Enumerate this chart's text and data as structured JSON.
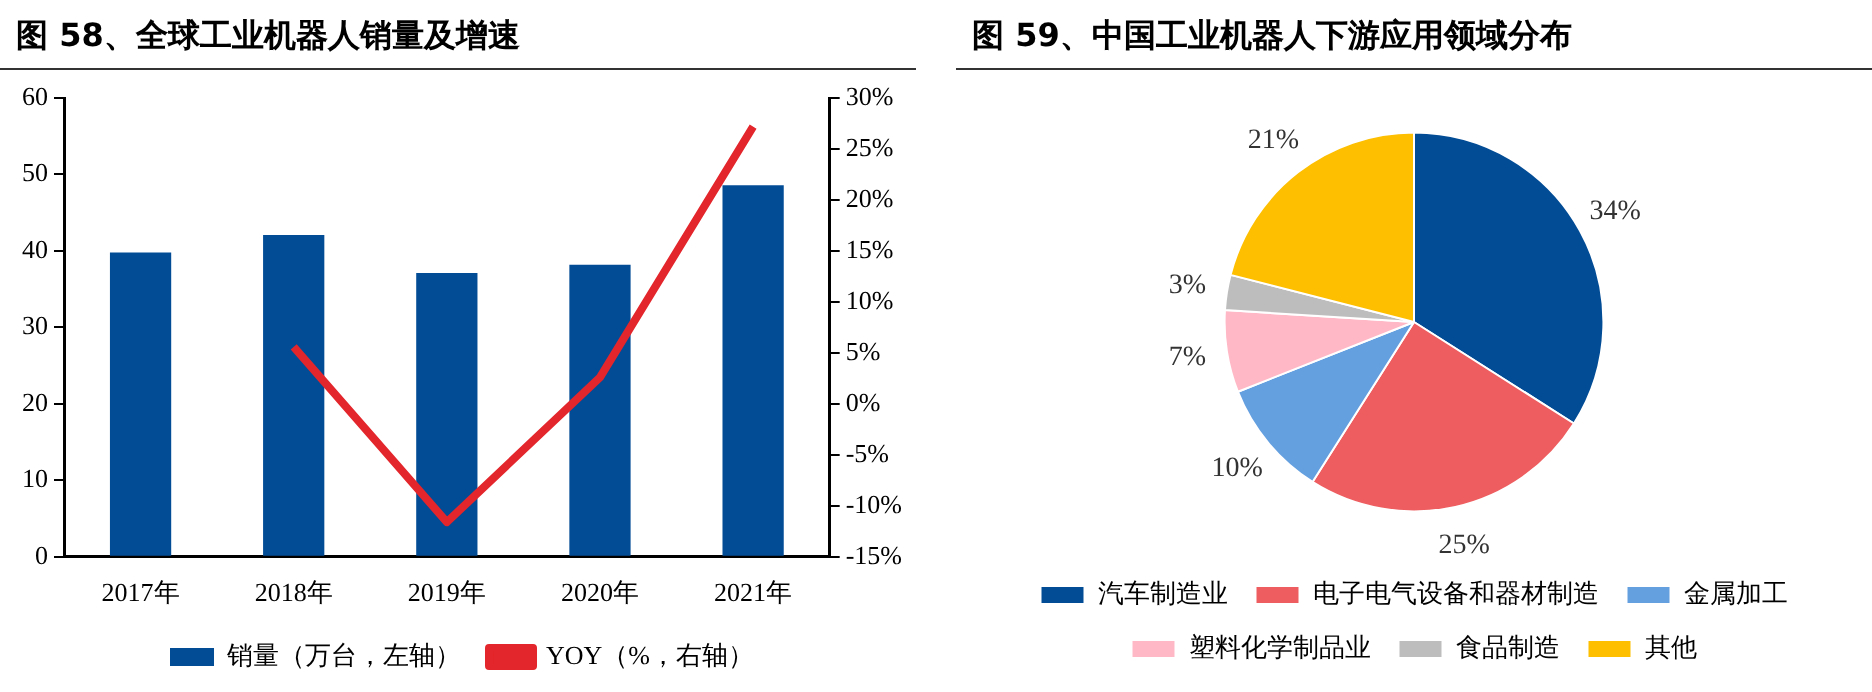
{
  "chart_data": [
    {
      "type": "bar",
      "title": "图 58、全球工业机器人销量及增速",
      "categories": [
        "2017年",
        "2018年",
        "2019年",
        "2020年",
        "2021年"
      ],
      "series": [
        {
          "name": "销量（万台，左轴）",
          "type": "bar",
          "color": "#024c96",
          "values": [
            39.8,
            42.1,
            37.1,
            38.2,
            48.6
          ]
        },
        {
          "name": "YOY（%，右轴）",
          "type": "line",
          "axis": "y2",
          "color": "#e3262b",
          "values": [
            null,
            5.6,
            -11.6,
            2.6,
            27.2
          ]
        }
      ],
      "ylim": [
        0,
        60
      ],
      "yticks": [
        0,
        10,
        20,
        30,
        40,
        50,
        60
      ],
      "y2lim": [
        -15,
        30
      ],
      "y2ticks": [
        {
          "value": -15,
          "label": "-15%"
        },
        {
          "value": -10,
          "label": "-10%"
        },
        {
          "value": -5,
          "label": "-5%"
        },
        {
          "value": 0,
          "label": "0%"
        },
        {
          "value": 5,
          "label": "5%"
        },
        {
          "value": 10,
          "label": "10%"
        },
        {
          "value": 15,
          "label": "15%"
        },
        {
          "value": 20,
          "label": "20%"
        },
        {
          "value": 25,
          "label": "25%"
        },
        {
          "value": 30,
          "label": "30%"
        }
      ],
      "grid": false,
      "legend": "bottom",
      "marker": "none"
    },
    {
      "type": "pie",
      "title": "图 59、中国工业机器人下游应用领域分布",
      "categories": [
        "汽车制造业",
        "电子电气设备和器材制造",
        "金属加工",
        "塑料化学制品业",
        "食品制造",
        "其他"
      ],
      "values": [
        34,
        25,
        10,
        7,
        3,
        21
      ],
      "colors": [
        "#024c96",
        "#ee5d5f",
        "#649fe0",
        "#ffb8c6",
        "#bdbdbd",
        "#fdbf00"
      ],
      "value_labels": [
        "34%",
        "25%",
        "10%",
        "7%",
        "3%",
        "21%"
      ],
      "legend": "bottom"
    }
  ]
}
